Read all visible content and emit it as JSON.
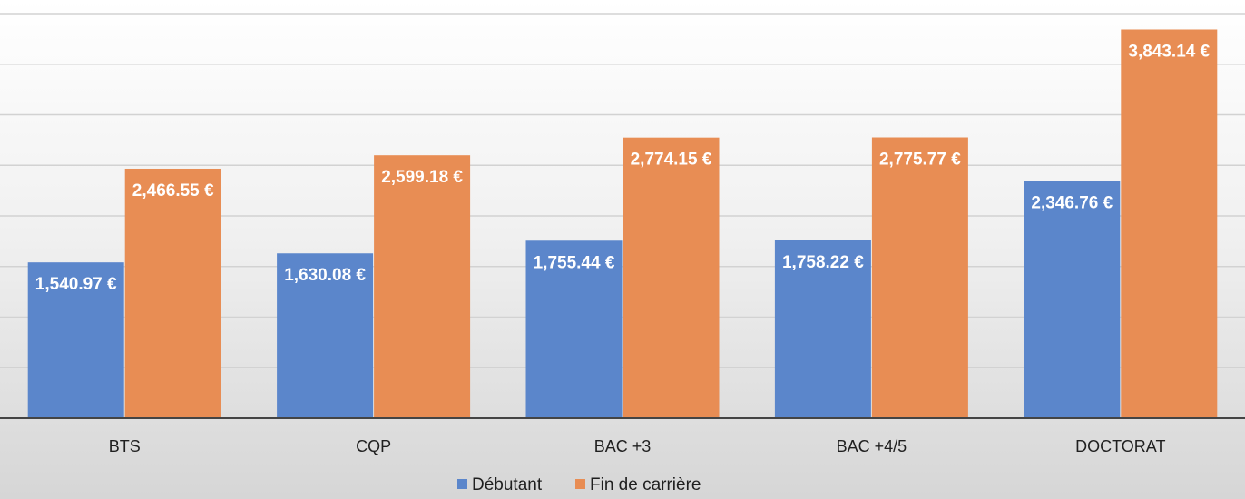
{
  "chart_data": {
    "type": "bar",
    "categories": [
      "BTS",
      "CQP",
      "BAC +3",
      "BAC +4/5",
      "DOCTORAT"
    ],
    "series": [
      {
        "name": "Débutant",
        "color": "#5b86cb",
        "values": [
          1540.97,
          1630.08,
          1755.44,
          1758.22,
          2346.76
        ],
        "labels": [
          "1,540.97 €",
          "1,630.08 €",
          "1,755.44 €",
          "1,758.22 €",
          "2,346.76 €"
        ]
      },
      {
        "name": "Fin de carrière",
        "color": "#e88d54",
        "values": [
          2466.55,
          2599.18,
          2774.15,
          2775.77,
          3843.14
        ],
        "labels": [
          "2,466.55 €",
          "2,599.18 €",
          "2,774.15 €",
          "2,775.77 €",
          "3,843.14 €"
        ]
      }
    ],
    "title": "",
    "xlabel": "",
    "ylabel": "",
    "ylim": [
      0,
      4000
    ],
    "grid": true,
    "legend": "bottom-center"
  }
}
